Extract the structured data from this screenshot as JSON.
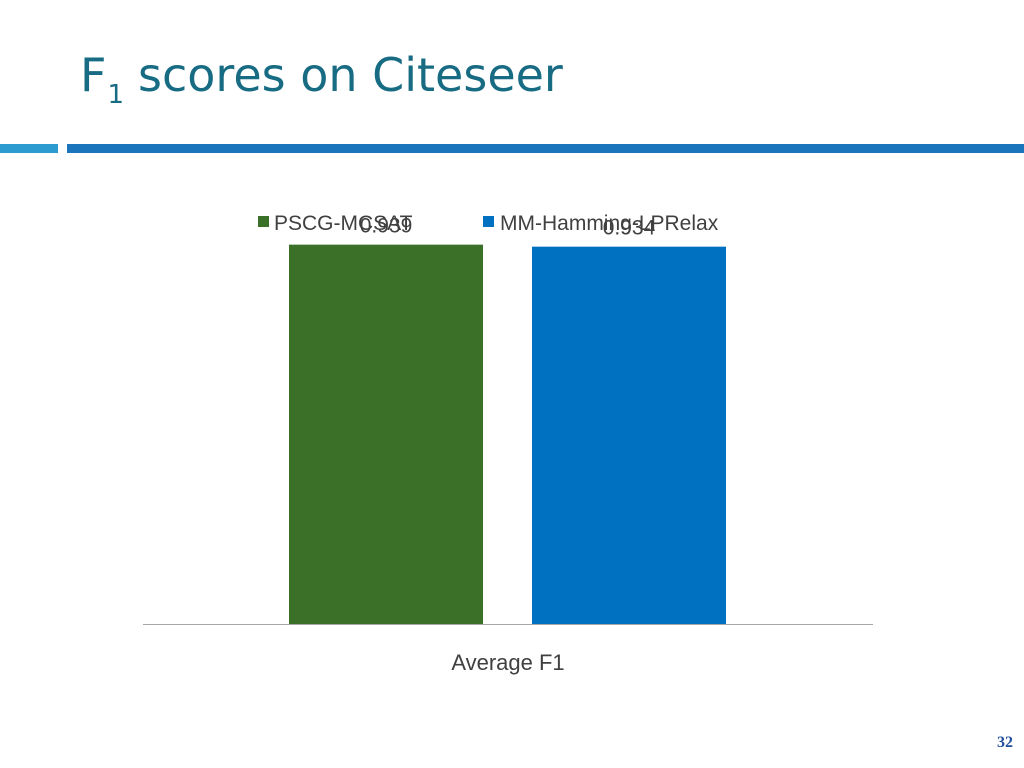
{
  "slide": {
    "title_main": "F",
    "title_sub": "1",
    "title_rest": "scores on Citeseer",
    "page_number": "32"
  },
  "colors": {
    "title": "#176b82",
    "accent_left": "#2b9bd0",
    "accent_right": "#1b75bc"
  },
  "chart_data": {
    "type": "bar",
    "categories": [
      "Average F1"
    ],
    "series": [
      {
        "name": "PSCG-MCSAT",
        "values": [
          0.939
        ],
        "color": "#3a7027"
      },
      {
        "name": "MM-Hamming-LPRelax",
        "values": [
          0.934
        ],
        "color": "#0070c0"
      }
    ],
    "data_labels": [
      "0.939",
      "0.934"
    ],
    "xlabel": "",
    "ylabel": "",
    "ylim": [
      0,
      1
    ],
    "grid": false,
    "legend": "top"
  }
}
